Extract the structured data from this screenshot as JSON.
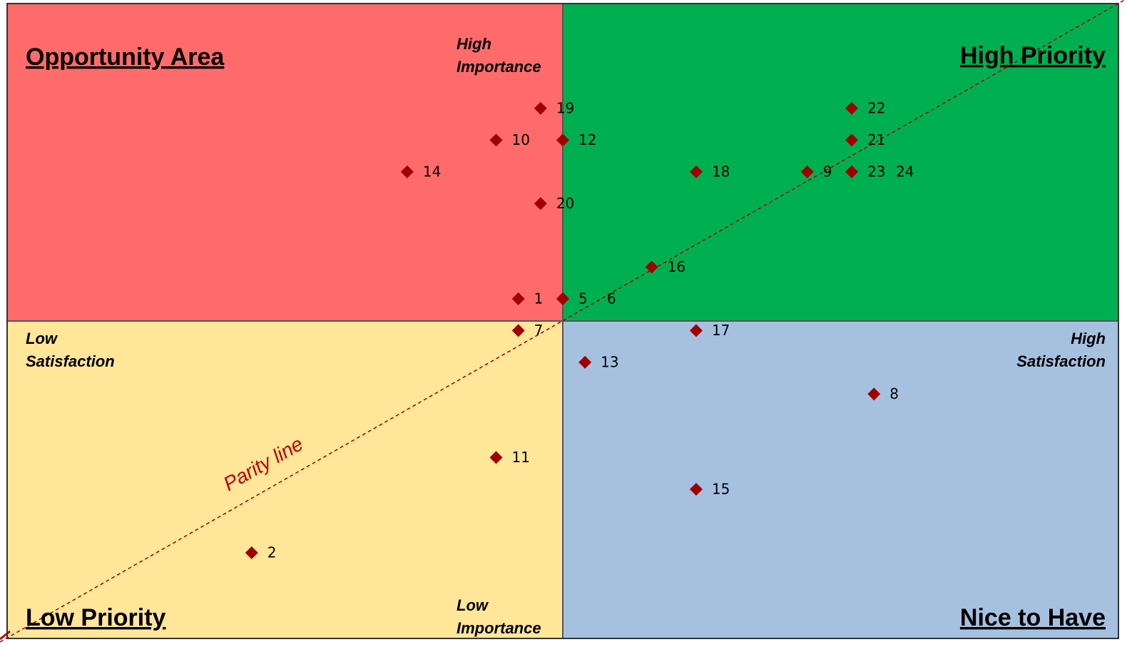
{
  "chart_data": {
    "type": "scatter",
    "quadrants": {
      "top_left": "Opportunity Area",
      "top_right": "High Priority",
      "bottom_left": "Low Priority",
      "bottom_right": "Nice to Have"
    },
    "axis_labels": {
      "y_high": "High Importance",
      "y_low": "Low Importance",
      "x_low": "Low Satisfaction",
      "x_high": "High Satisfaction"
    },
    "annotation": "Parity line",
    "quadrant_colors": {
      "top_left": "#ff6b6b",
      "top_right": "#00b050",
      "bottom_left": "#ffe699",
      "bottom_right": "#a6c1e0"
    },
    "color": "#a00000",
    "xlim": [
      -25,
      25
    ],
    "ylim": [
      -10,
      10
    ],
    "labels": [
      "1",
      "2",
      "5",
      "6",
      "7",
      "8",
      "9",
      "10",
      "11",
      "12",
      "13",
      "14",
      "15",
      "16",
      "17",
      "18",
      "19",
      "20",
      "21",
      "22",
      "23",
      "24"
    ],
    "x": [
      -2,
      -14,
      0,
      0,
      -2,
      14,
      11,
      -3,
      -3,
      0,
      1,
      -7,
      6,
      4,
      6,
      6,
      -1,
      -1,
      13,
      13,
      13,
      13
    ],
    "y": [
      0.7,
      -7.3,
      0.7,
      0.7,
      -0.3,
      -2.3,
      4.7,
      5.7,
      -4.3,
      5.7,
      -1.3,
      4.7,
      -5.3,
      1.7,
      -0.3,
      4.7,
      6.7,
      3.7,
      5.7,
      6.7,
      4.7,
      4.7
    ]
  }
}
